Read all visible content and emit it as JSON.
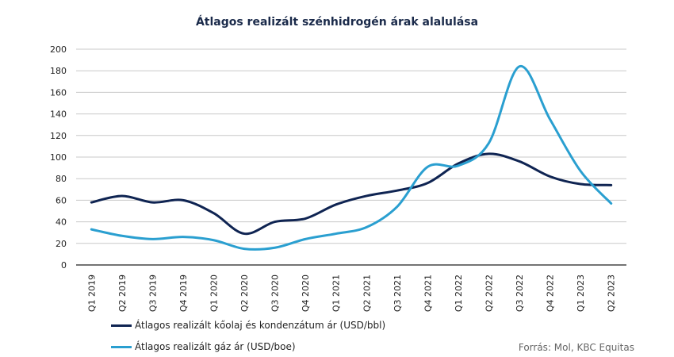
{
  "chart_data": {
    "type": "line",
    "title": "Átlagos realizált szénhidrogén árak alalulása",
    "categories": [
      "Q1 2019",
      "Q2 2019",
      "Q3 2019",
      "Q4 2019",
      "Q1 2020",
      "Q2 2020",
      "Q3 2020",
      "Q4 2020",
      "Q1 2021",
      "Q2 2021",
      "Q3 2021",
      "Q4 2021",
      "Q1 2022",
      "Q2 2022",
      "Q3 2022",
      "Q4 2022",
      "Q1 2023",
      "Q2 2023"
    ],
    "series": [
      {
        "name": "Átlagos realizált kőolaj és kondenzátum ár (USD/bbl)",
        "color": "#0f2452",
        "values": [
          58,
          64,
          58,
          60,
          48,
          29,
          40,
          43,
          56,
          64,
          69,
          76,
          94,
          103,
          96,
          82,
          75,
          74
        ]
      },
      {
        "name": "Átlagos realizált gáz ár (USD/boe)",
        "color": "#2a9fd0",
        "values": [
          33,
          27,
          24,
          26,
          23,
          15,
          16,
          24,
          29,
          35,
          54,
          91,
          92,
          113,
          184,
          135,
          87,
          57
        ]
      }
    ],
    "yticks": [
      0,
      20,
      40,
      60,
      80,
      100,
      120,
      140,
      160,
      180,
      200
    ],
    "ylim": [
      0,
      200
    ],
    "grid": true,
    "legend": "bottom-left",
    "source": "Forrás: Mol, KBC Equitas"
  }
}
